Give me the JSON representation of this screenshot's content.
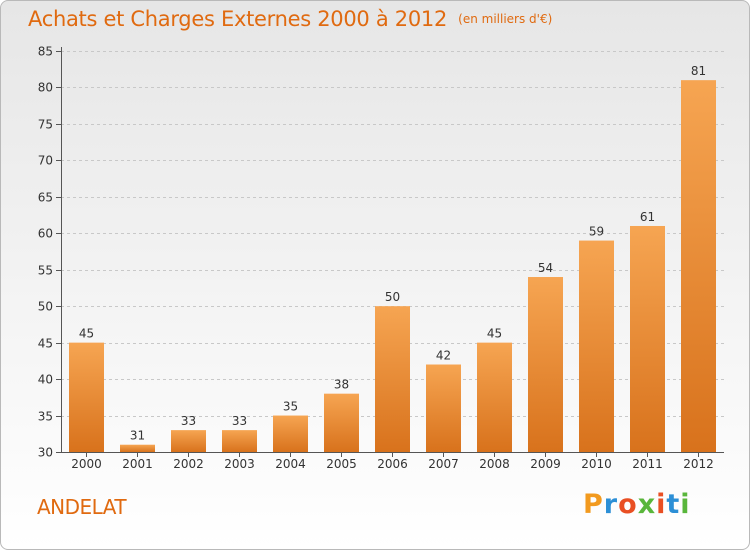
{
  "title": "Achats et Charges Externes 2000 à 2012",
  "unit_note": "(en milliers d'€)",
  "commune": "ANDELAT",
  "logo": {
    "letters": [
      "P",
      "r",
      "o",
      "x",
      "i",
      "t",
      "i"
    ],
    "colors": [
      "#f29a1f",
      "#2c8fd6",
      "#e94f23",
      "#59b63b",
      "#e94f23",
      "#2c8fd6",
      "#59b63b"
    ]
  },
  "colors": {
    "bar_top": "#f6a552",
    "bar_bottom": "#d8721c",
    "title": "#e06a10",
    "grid": "#c8c8c8"
  },
  "chart_data": {
    "type": "bar",
    "title": "Achats et Charges Externes 2000 à 2012",
    "categories": [
      "2000",
      "2001",
      "2002",
      "2003",
      "2004",
      "2005",
      "2006",
      "2007",
      "2008",
      "2009",
      "2010",
      "2011",
      "2012"
    ],
    "values": [
      45,
      31,
      33,
      33,
      35,
      38,
      50,
      42,
      45,
      54,
      59,
      61,
      81
    ],
    "ylim": [
      30,
      85
    ],
    "yticks": [
      30,
      35,
      40,
      45,
      50,
      55,
      60,
      65,
      70,
      75,
      80,
      85
    ],
    "grid": "horizontal-dashed",
    "legend": "none"
  }
}
